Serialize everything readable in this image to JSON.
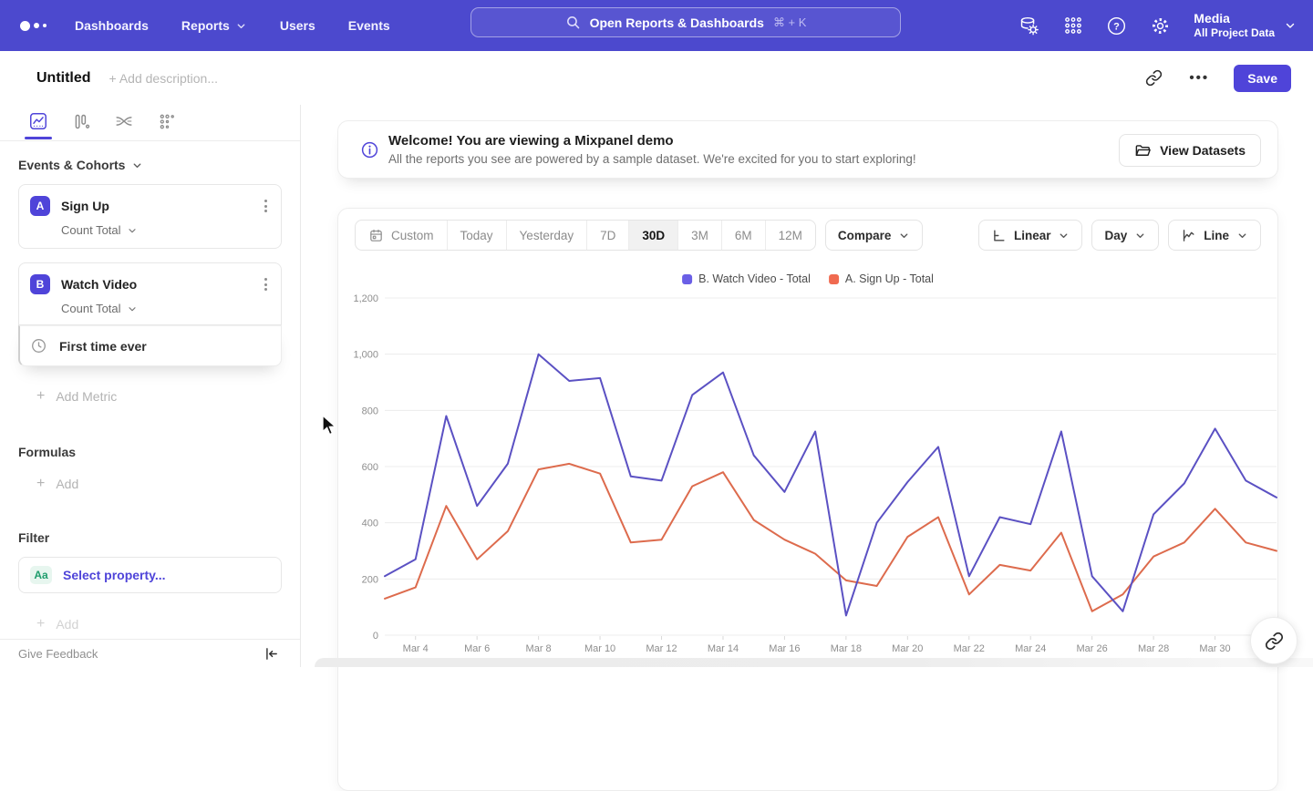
{
  "colors": {
    "accent": "#4f44d9",
    "nav_bg": "#4c49ce",
    "watch_video_line": "#5b51c3",
    "watch_video_swatch": "#6a5fe6",
    "sign_up_line": "#dd6b4d",
    "sign_up_swatch": "#f06a50"
  },
  "nav": {
    "items": [
      {
        "label": "Dashboards",
        "chevron": false
      },
      {
        "label": "Reports",
        "chevron": true
      },
      {
        "label": "Users",
        "chevron": false
      },
      {
        "label": "Events",
        "chevron": false
      }
    ],
    "search": {
      "placeholder": "Open Reports & Dashboards",
      "shortcut": "⌘ + K"
    },
    "project": {
      "name": "Media",
      "scope": "All Project Data"
    }
  },
  "titlebar": {
    "title": "Untitled",
    "description_placeholder": "+ Add description...",
    "save_label": "Save"
  },
  "sidebar": {
    "events_section": "Events & Cohorts",
    "metrics": [
      {
        "letter": "A",
        "name": "Sign Up",
        "aggregation": "Count Total"
      },
      {
        "letter": "B",
        "name": "Watch Video",
        "aggregation": "Count Total"
      }
    ],
    "first_time_ever": "First time ever",
    "add_metric_label": "Add Metric",
    "formulas_label": "Formulas",
    "formulas_add_label": "Add",
    "filter_label": "Filter",
    "filter_badge": "Aa",
    "filter_placeholder": "Select property...",
    "filter_add_label": "Add",
    "give_feedback": "Give Feedback"
  },
  "banner": {
    "title": "Welcome! You are viewing a Mixpanel demo",
    "subtitle": "All the reports you see are powered by a sample dataset. We're excited for you to start exploring!",
    "button": "View Datasets"
  },
  "controls": {
    "ranges": [
      "Custom",
      "Today",
      "Yesterday",
      "7D",
      "30D",
      "3M",
      "6M",
      "12M"
    ],
    "selected_range": "30D",
    "compare_label": "Compare",
    "scale_label": "Linear",
    "interval_label": "Day",
    "chart_type_label": "Line"
  },
  "chart_data": {
    "type": "line",
    "title": "",
    "xlabel": "",
    "ylabel": "",
    "ylim": [
      0,
      1200
    ],
    "grid": true,
    "legend_position": "top-center",
    "yticks": [
      {
        "value": 0,
        "label": "0"
      },
      {
        "value": 200,
        "label": "200"
      },
      {
        "value": 400,
        "label": "400"
      },
      {
        "value": 600,
        "label": "600"
      },
      {
        "value": 800,
        "label": "800"
      },
      {
        "value": 1000,
        "label": "1,000"
      },
      {
        "value": 1200,
        "label": "1,200"
      }
    ],
    "x": [
      "Mar 3",
      "Mar 4",
      "Mar 5",
      "Mar 6",
      "Mar 7",
      "Mar 8",
      "Mar 9",
      "Mar 10",
      "Mar 11",
      "Mar 12",
      "Mar 13",
      "Mar 14",
      "Mar 15",
      "Mar 16",
      "Mar 17",
      "Mar 18",
      "Mar 19",
      "Mar 20",
      "Mar 21",
      "Mar 22",
      "Mar 23",
      "Mar 24",
      "Mar 25",
      "Mar 26",
      "Mar 27",
      "Mar 28",
      "Mar 29",
      "Mar 30",
      "Mar 31",
      "Apr 1"
    ],
    "series": [
      {
        "name": "B. Watch Video - Total",
        "color": "#5b51c3",
        "swatch_color": "#6a5fe6",
        "values": [
          210,
          270,
          780,
          460,
          610,
          1000,
          905,
          915,
          565,
          550,
          855,
          935,
          640,
          510,
          725,
          70,
          400,
          545,
          670,
          210,
          420,
          395,
          725,
          210,
          85,
          430,
          540,
          735,
          550,
          490
        ]
      },
      {
        "name": "A. Sign Up - Total",
        "color": "#dd6b4d",
        "swatch_color": "#f06a50",
        "values": [
          130,
          170,
          460,
          270,
          370,
          590,
          610,
          575,
          330,
          340,
          530,
          580,
          410,
          340,
          290,
          195,
          175,
          350,
          420,
          145,
          250,
          230,
          365,
          85,
          145,
          280,
          330,
          450,
          330,
          300
        ]
      }
    ]
  }
}
